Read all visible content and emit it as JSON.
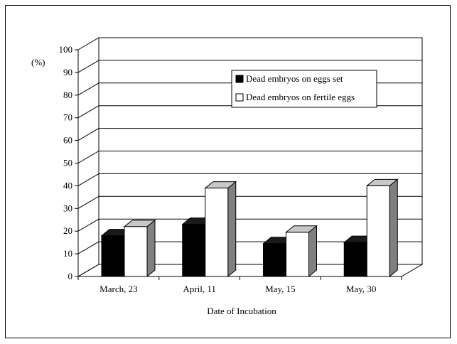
{
  "chart_data": {
    "type": "bar",
    "title": "",
    "xlabel": "Date of Incubation",
    "ylabel": "(%)",
    "ylim": [
      0,
      100
    ],
    "yticks": [
      "0",
      "10",
      "20",
      "30",
      "40",
      "50",
      "60",
      "70",
      "80",
      "90",
      "100"
    ],
    "categories": [
      "March, 23",
      "April, 11",
      "May, 15",
      "May, 30"
    ],
    "series": [
      {
        "name": "Dead embryos on eggs set",
        "values": [
          18,
          23,
          14.5,
          15
        ],
        "color": "#000000"
      },
      {
        "name": "Dead embryos on fertile eggs",
        "values": [
          22,
          39,
          19.5,
          40
        ],
        "color": "#ffffff"
      }
    ],
    "grid": true,
    "legend_position": "top-right",
    "style": "3d"
  }
}
